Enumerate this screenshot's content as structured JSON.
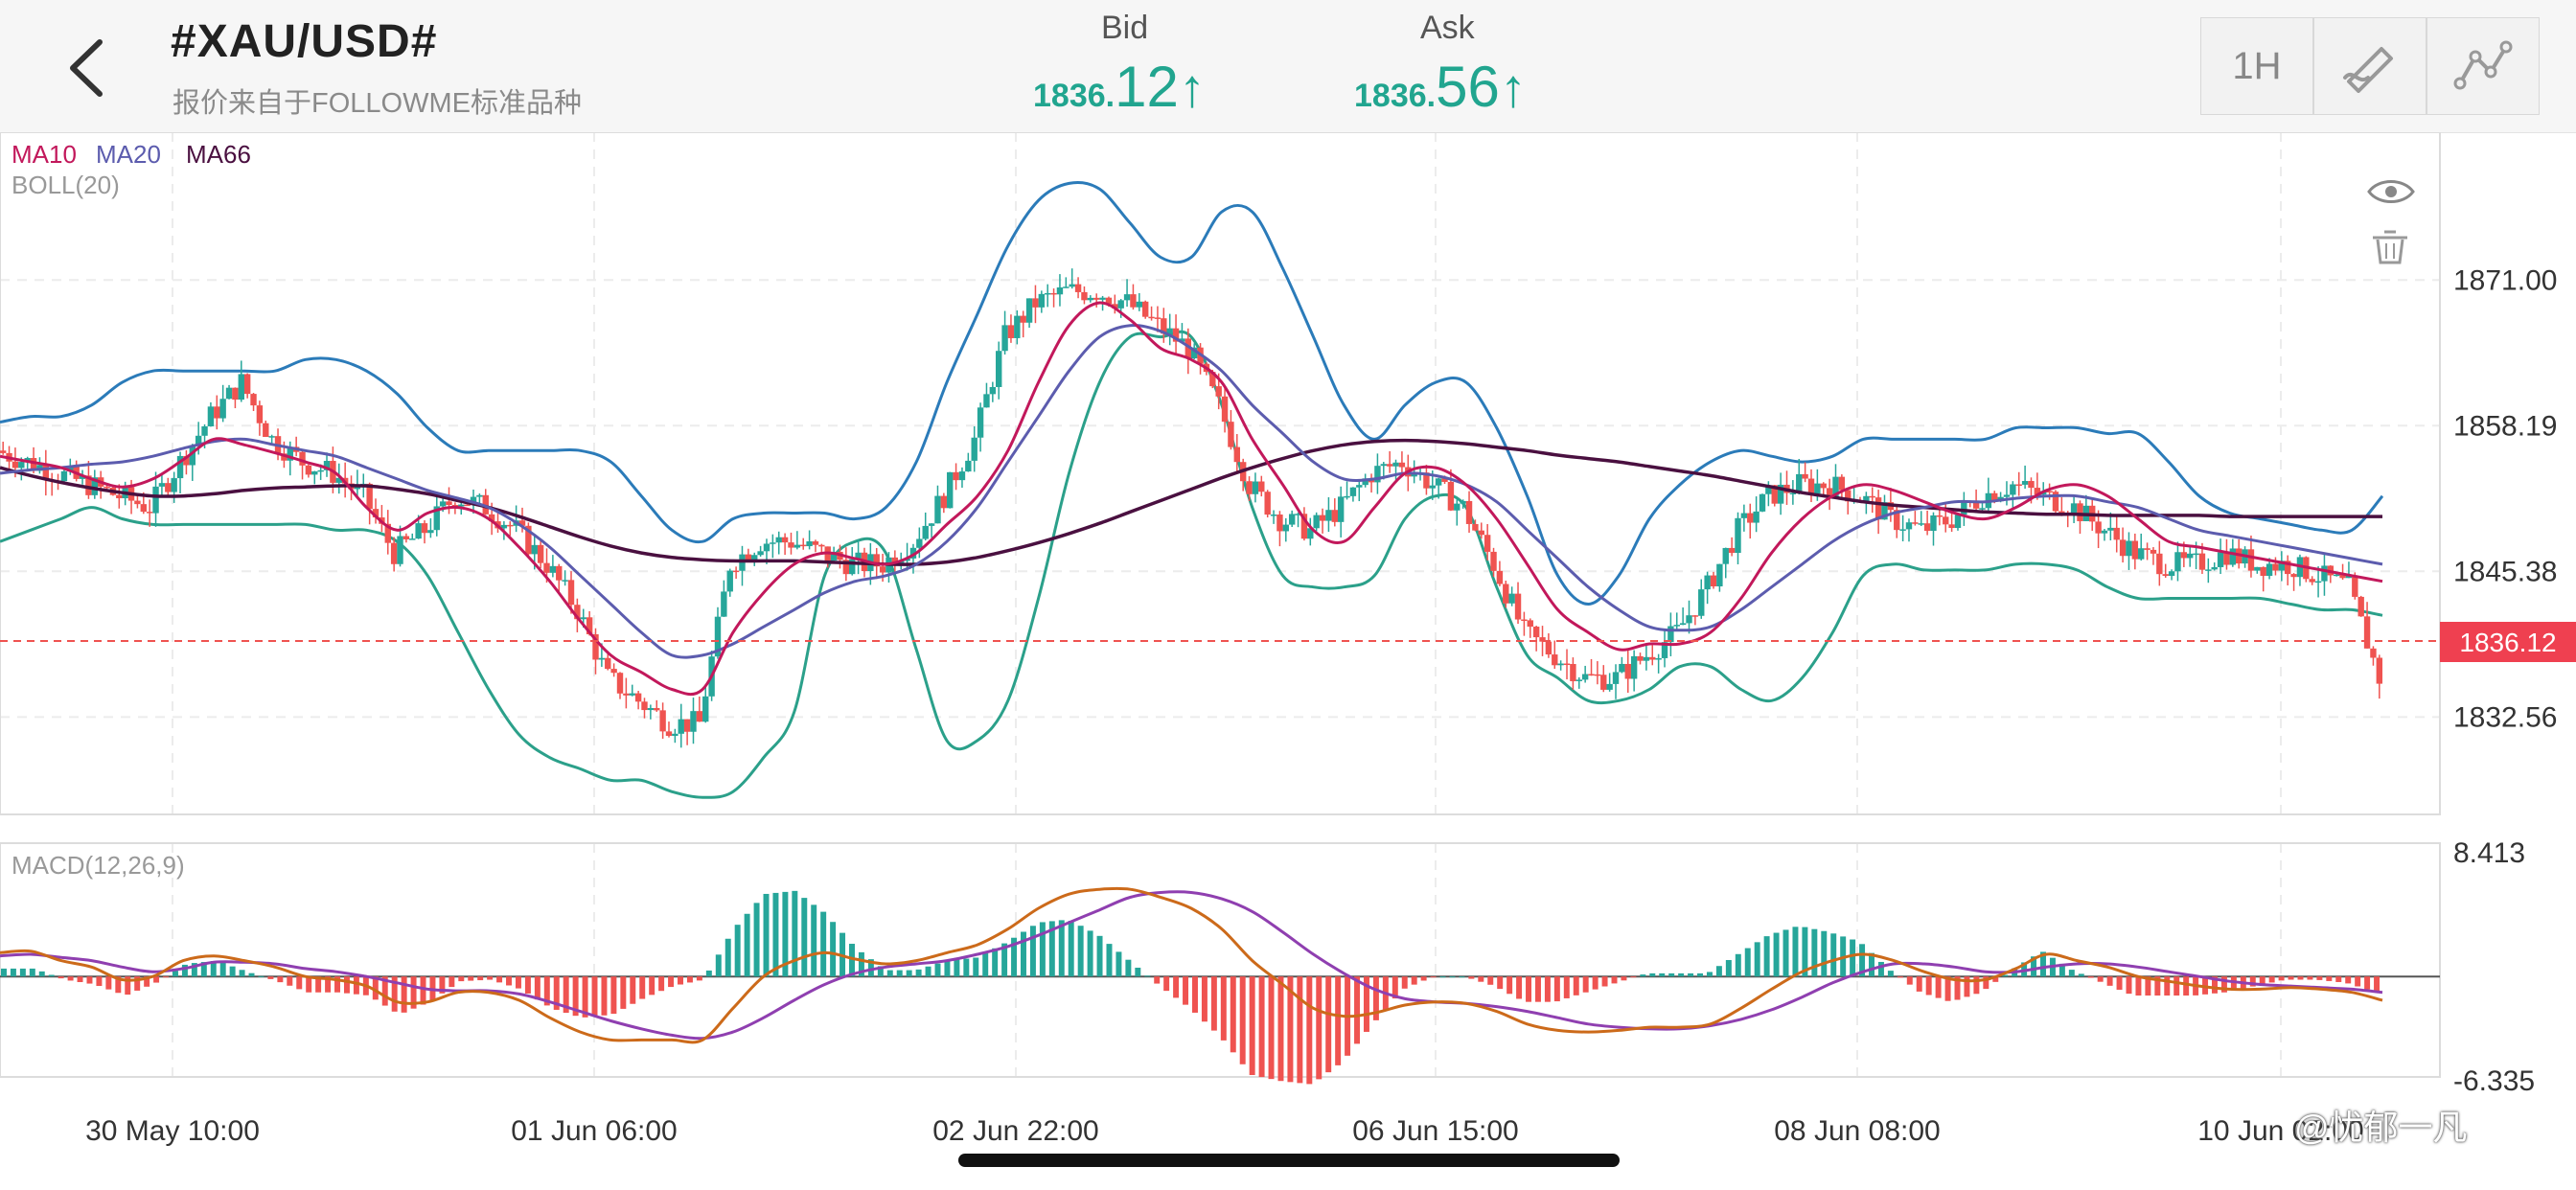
{
  "header": {
    "symbol": "#XAU/USD#",
    "source_note": "报价来自于FOLLOWME标准品种",
    "bid_label": "Bid",
    "bid_int": "1836.",
    "bid_dec": "12",
    "ask_label": "Ask",
    "ask_int": "1836.",
    "ask_dec": "56",
    "up_arrow": "↑",
    "timeframe_button": "1H"
  },
  "colors": {
    "up": "#26a69a",
    "down": "#ef5350",
    "ma10": "#c2185b",
    "ma20": "#5c5cae",
    "ma66": "#4a1040",
    "boll_upper": "#2b7bb9",
    "boll_lower": "#2ba08a",
    "dif": "#cc6a1a",
    "dea": "#8f3fb0",
    "quote": "#21a58f"
  },
  "watermark": "@忧郁一凡",
  "chart_data": [
    {
      "type": "candlestick",
      "legend": [
        "MA10",
        "MA20",
        "MA66",
        "BOLL(20)"
      ],
      "y_ticks": [
        "1871.00",
        "1858.19",
        "1845.38",
        "1832.56"
      ],
      "ylim": [
        1824.0,
        1884.0
      ],
      "current_price": "1836.12",
      "x_labels": [
        "30 May 10:00",
        "01 Jun 06:00",
        "02 Jun 22:00",
        "06 Jun 15:00",
        "08 Jun 08:00",
        "10 Jun 02:00"
      ],
      "series": [
        {
          "name": "MA10",
          "values": [
            1855.5,
            1855,
            1854.5,
            1853.5,
            1852.8,
            1853.5,
            1855.2,
            1857,
            1856.5,
            1855.8,
            1855,
            1854,
            1851,
            1849,
            1850.5,
            1851,
            1850,
            1847.5,
            1844.5,
            1841,
            1838,
            1836.5,
            1835,
            1835,
            1840,
            1843.5,
            1846,
            1847,
            1846.5,
            1846,
            1847,
            1849.5,
            1852,
            1856,
            1862,
            1867,
            1869,
            1867.5,
            1865,
            1864,
            1862,
            1857,
            1853,
            1849,
            1848,
            1851,
            1854,
            1854.5,
            1853,
            1850,
            1846,
            1842,
            1840,
            1838.5,
            1839,
            1839,
            1840,
            1843,
            1847,
            1850,
            1852,
            1853,
            1852.5,
            1851.5,
            1850.5,
            1850,
            1851,
            1852.5,
            1853,
            1852,
            1850,
            1848,
            1847.5,
            1847,
            1846.5,
            1846,
            1845.5,
            1845,
            1844.5
          ]
        },
        {
          "name": "MA20",
          "values": [
            1854,
            1854.3,
            1854.5,
            1854.8,
            1855,
            1855.5,
            1856.2,
            1856.8,
            1857,
            1856.5,
            1856,
            1855.5,
            1854.5,
            1853.5,
            1852.5,
            1851.8,
            1851,
            1849.5,
            1847.5,
            1845,
            1842.5,
            1840,
            1838,
            1838,
            1839,
            1840.5,
            1842,
            1843.5,
            1844.5,
            1845,
            1846,
            1848,
            1851,
            1855,
            1859,
            1863,
            1866,
            1867,
            1866.5,
            1865,
            1863,
            1860,
            1857.5,
            1855,
            1853.5,
            1853.5,
            1854,
            1853.8,
            1853,
            1851.5,
            1849,
            1846.5,
            1844,
            1842,
            1840.5,
            1840.2,
            1840.5,
            1842,
            1844,
            1846,
            1848,
            1849.5,
            1850.5,
            1851,
            1851.5,
            1851.5,
            1851.8,
            1852,
            1852,
            1851.5,
            1851,
            1850,
            1849,
            1848.5,
            1848,
            1847.5,
            1847,
            1846.5,
            1846
          ]
        },
        {
          "name": "MA66",
          "values": [
            1854.5,
            1853.8,
            1853.2,
            1852.7,
            1852.3,
            1852,
            1852,
            1852.2,
            1852.5,
            1852.7,
            1852.8,
            1852.9,
            1852.9,
            1852.6,
            1852.2,
            1851.6,
            1851,
            1850.2,
            1849.3,
            1848.4,
            1847.6,
            1847,
            1846.6,
            1846.4,
            1846.3,
            1846.3,
            1846.3,
            1846.2,
            1846.1,
            1846,
            1846,
            1846.2,
            1846.6,
            1847.2,
            1847.9,
            1848.7,
            1849.6,
            1850.6,
            1851.6,
            1852.6,
            1853.6,
            1854.5,
            1855.3,
            1856,
            1856.5,
            1856.8,
            1856.9,
            1856.8,
            1856.6,
            1856.3,
            1856,
            1855.6,
            1855.3,
            1855,
            1854.6,
            1854.2,
            1853.8,
            1853.3,
            1852.8,
            1852.3,
            1851.9,
            1851.5,
            1851.2,
            1851,
            1850.8,
            1850.6,
            1850.5,
            1850.4,
            1850.4,
            1850.3,
            1850.3,
            1850.3,
            1850.3,
            1850.2,
            1850.2,
            1850.2,
            1850.2,
            1850.2,
            1850.2
          ]
        },
        {
          "name": "BOLL upper",
          "values": [
            1858.5,
            1859,
            1859,
            1860,
            1862,
            1863,
            1863,
            1863,
            1863,
            1863,
            1864,
            1864,
            1863,
            1861,
            1858,
            1856,
            1856,
            1856,
            1856,
            1856,
            1855,
            1852,
            1849,
            1848,
            1850,
            1850.5,
            1850.5,
            1850.5,
            1850,
            1851,
            1855,
            1862,
            1868,
            1874,
            1878,
            1879.5,
            1879,
            1876,
            1873,
            1873,
            1877,
            1877,
            1872,
            1866,
            1860,
            1857,
            1860,
            1862,
            1862,
            1858,
            1852,
            1845,
            1842.5,
            1845,
            1850,
            1853,
            1855,
            1856,
            1855.5,
            1855,
            1855.5,
            1857,
            1857,
            1857,
            1857,
            1857,
            1858,
            1858,
            1858,
            1857.5,
            1857.5,
            1855,
            1852,
            1850.5,
            1850,
            1849.5,
            1849,
            1849,
            1852
          ]
        },
        {
          "name": "BOLL lower",
          "values": [
            1848,
            1849,
            1850,
            1851,
            1850,
            1849.5,
            1849.5,
            1849.5,
            1849.5,
            1849.5,
            1849.5,
            1849,
            1849,
            1848,
            1845,
            1840,
            1835,
            1831,
            1829,
            1828,
            1827,
            1827,
            1826,
            1825.5,
            1826,
            1829,
            1833,
            1845,
            1848,
            1847,
            1838.5,
            1830.5,
            1830.5,
            1834,
            1843,
            1854,
            1862,
            1866,
            1866,
            1866,
            1860,
            1851,
            1845,
            1844,
            1844,
            1845,
            1850,
            1852,
            1851,
            1844,
            1838,
            1836,
            1834,
            1834,
            1835,
            1837,
            1837,
            1835,
            1834,
            1836,
            1840,
            1845,
            1846,
            1845.5,
            1845.5,
            1845.5,
            1846,
            1846,
            1845.5,
            1844,
            1843,
            1843,
            1843,
            1843,
            1843,
            1842.5,
            1842,
            1842,
            1841.5
          ]
        },
        {
          "name": "Candles",
          "values": [
            1856,
            1855,
            1854,
            1853,
            1852,
            1851,
            1855,
            1859,
            1862,
            1857,
            1855,
            1854,
            1852,
            1847,
            1849,
            1852,
            1851,
            1849,
            1846,
            1842,
            1836,
            1834,
            1832,
            1832,
            1846,
            1848,
            1848,
            1847,
            1846,
            1846,
            1848,
            1852,
            1857,
            1866,
            1869,
            1870,
            1870,
            1869,
            1867,
            1865,
            1860,
            1853,
            1850,
            1849,
            1851,
            1854,
            1855,
            1853,
            1851,
            1846,
            1840,
            1838,
            1836,
            1836,
            1838,
            1840,
            1844,
            1849,
            1852,
            1853,
            1853,
            1852,
            1850,
            1849,
            1850,
            1852,
            1853,
            1852,
            1851,
            1849,
            1847,
            1846,
            1846,
            1847,
            1846,
            1846,
            1845,
            1844,
            1836
          ]
        }
      ]
    },
    {
      "type": "macd",
      "legend": [
        "MACD(12,26,9)"
      ],
      "y_ticks": [
        "8.413",
        "-6.335"
      ],
      "ylim": [
        -6.335,
        8.413
      ],
      "series": [
        {
          "name": "DIF",
          "values": [
            1.5,
            1.6,
            1,
            0.6,
            -0.2,
            0,
            1,
            1.3,
            1,
            0.6,
            0,
            -0.2,
            -0.6,
            -1.6,
            -1.6,
            -1,
            -1,
            -1.5,
            -2.6,
            -3.5,
            -4,
            -4,
            -4,
            -4,
            -2,
            0,
            1,
            1.5,
            1.1,
            0.8,
            1,
            1.5,
            2,
            3,
            4.3,
            5.2,
            5.5,
            5.5,
            5,
            4.3,
            3,
            1,
            -0.5,
            -2,
            -2.5,
            -2.3,
            -1.8,
            -1.6,
            -1.7,
            -2.2,
            -3,
            -3.4,
            -3.5,
            -3.4,
            -3.2,
            -3.2,
            -3,
            -2,
            -0.8,
            0.3,
            1,
            1.4,
            1,
            0.3,
            -0.2,
            -0.2,
            0.5,
            1.4,
            1,
            0.6,
            0,
            -0.3,
            -0.6,
            -0.8,
            -0.8,
            -0.7,
            -0.8,
            -1,
            -1.5
          ]
        },
        {
          "name": "DEA",
          "values": [
            1.3,
            1.4,
            1.2,
            1,
            0.6,
            0.3,
            0.5,
            0.9,
            0.9,
            0.8,
            0.5,
            0.3,
            0,
            -0.4,
            -0.8,
            -0.9,
            -0.9,
            -1.1,
            -1.6,
            -2.2,
            -2.8,
            -3.3,
            -3.7,
            -3.9,
            -3.5,
            -2.6,
            -1.5,
            -0.5,
            0.2,
            0.6,
            0.8,
            1,
            1.4,
            1.9,
            2.6,
            3.4,
            4.2,
            5,
            5.3,
            5.3,
            4.9,
            4.1,
            2.8,
            1.4,
            0.2,
            -0.8,
            -1.4,
            -1.6,
            -1.7,
            -1.9,
            -2.2,
            -2.6,
            -3,
            -3.2,
            -3.3,
            -3.3,
            -3.1,
            -2.7,
            -2.1,
            -1.3,
            -0.4,
            0.3,
            0.8,
            0.8,
            0.6,
            0.3,
            0.3,
            0.6,
            0.8,
            0.8,
            0.6,
            0.3,
            0,
            -0.3,
            -0.5,
            -0.6,
            -0.7,
            -0.8,
            -1
          ]
        },
        {
          "name": "MACD",
          "values": [
            0.5,
            0.5,
            -0.2,
            -0.5,
            -1.2,
            -0.4,
            0.8,
            1,
            0.3,
            -0.3,
            -1,
            -1,
            -1.2,
            -2.4,
            -1.6,
            -0.3,
            -0.2,
            -0.8,
            -2,
            -2.6,
            -2.4,
            -1.4,
            -0.6,
            -0.2,
            3,
            5.2,
            5.4,
            4,
            1.8,
            0.4,
            0.4,
            1,
            1.2,
            2.2,
            3.4,
            3.6,
            2.6,
            1,
            -0.6,
            -2,
            -3.8,
            -6.2,
            -6.6,
            -6.8,
            -5.4,
            -3,
            -0.8,
            0,
            0,
            -0.6,
            -1.6,
            -1.6,
            -1,
            -0.4,
            0.2,
            0.2,
            0.2,
            1.4,
            2.6,
            3.2,
            2.8,
            2.2,
            0.4,
            -1,
            -1.6,
            -1,
            0.4,
            1.6,
            0.4,
            -0.4,
            -1.2,
            -1.2,
            -1.2,
            -1,
            -0.6,
            -0.2,
            -0.2,
            -0.4,
            -1
          ]
        }
      ]
    }
  ]
}
